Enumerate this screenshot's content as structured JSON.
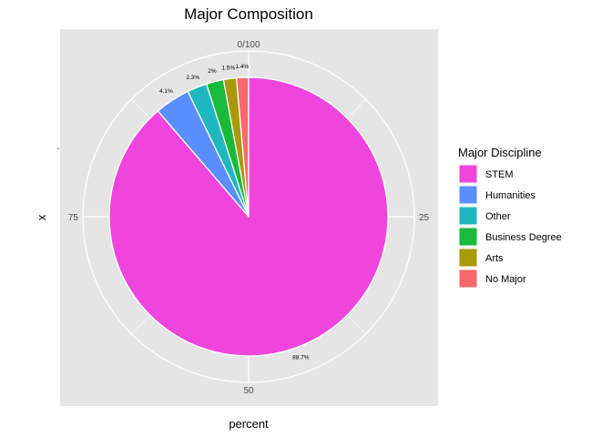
{
  "chart_data": {
    "type": "pie",
    "title": "Major Composition",
    "xlabel": "percent",
    "ylabel": "x",
    "y_tick": "-",
    "theta_ticks": [
      "0/100",
      "25",
      "50",
      "75"
    ],
    "legend": {
      "title": "Major Discipline",
      "position": "right"
    },
    "slices": [
      {
        "name": "STEM",
        "value": 88.7,
        "label": "88.7%",
        "color": "#F045DC"
      },
      {
        "name": "Humanities",
        "value": 4.1,
        "label": "4.1%",
        "color": "#5B8FFF"
      },
      {
        "name": "Other",
        "value": 2.3,
        "label": "2.3%",
        "color": "#1FB8C0"
      },
      {
        "name": "Business Degree",
        "value": 2.0,
        "label": "2%",
        "color": "#19B93B"
      },
      {
        "name": "Arts",
        "value": 1.5,
        "label": "1.5%",
        "color": "#A99A0A"
      },
      {
        "name": "No Major",
        "value": 1.4,
        "label": "1.4%",
        "color": "#F8696B"
      }
    ],
    "panel_background": "#E5E5E5",
    "grid": true
  }
}
